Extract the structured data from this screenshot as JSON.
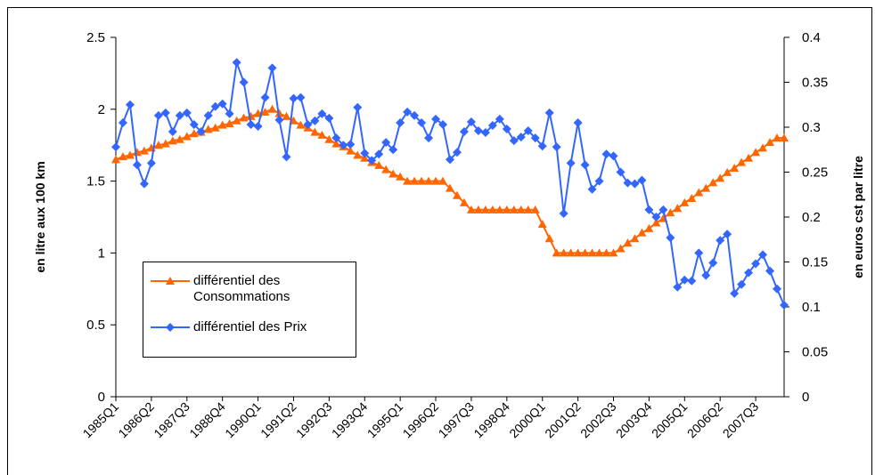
{
  "chart_data": {
    "type": "line",
    "y_label": "en litre aux 100 km",
    "y2_label": "en euros cst par litre",
    "categories": [
      "1985Q1",
      null,
      null,
      null,
      null,
      "1986Q2",
      null,
      null,
      null,
      null,
      "1987Q3",
      null,
      null,
      null,
      null,
      "1988Q4",
      null,
      null,
      null,
      null,
      "1990Q1",
      null,
      null,
      null,
      null,
      "1991Q2",
      null,
      null,
      null,
      null,
      "1992Q3",
      null,
      null,
      null,
      null,
      "1993Q4",
      null,
      null,
      null,
      null,
      "1995Q1",
      null,
      null,
      null,
      null,
      "1996Q2",
      null,
      null,
      null,
      null,
      "1997Q3",
      null,
      null,
      null,
      null,
      "1998Q4",
      null,
      null,
      null,
      null,
      "2000Q1",
      null,
      null,
      null,
      null,
      "2001Q2",
      null,
      null,
      null,
      null,
      "2002Q3",
      null,
      null,
      null,
      null,
      "2003Q4",
      null,
      null,
      null,
      null,
      "2005Q1",
      null,
      null,
      null,
      null,
      "2006Q2",
      null,
      null,
      null,
      null,
      "2007Q3",
      null,
      null,
      null,
      null
    ],
    "ylim": [
      0,
      2.5
    ],
    "yticks": [
      0,
      0.5,
      1,
      1.5,
      2,
      2.5
    ],
    "y2lim": [
      0,
      0.4
    ],
    "y2ticks": [
      0,
      0.05,
      0.1,
      0.15,
      0.2,
      0.25,
      0.3,
      0.35,
      0.4
    ],
    "series": [
      {
        "name": "différentiel des Consommations",
        "color": "#ff6600",
        "marker": "triangle",
        "values": [
          1.65,
          1.67,
          1.68,
          1.7,
          1.71,
          1.73,
          1.75,
          1.76,
          1.78,
          1.79,
          1.81,
          1.83,
          1.84,
          1.86,
          1.87,
          1.89,
          1.9,
          1.92,
          1.94,
          1.95,
          1.97,
          1.98,
          2.0,
          1.97,
          1.95,
          1.92,
          1.89,
          1.87,
          1.84,
          1.82,
          1.79,
          1.76,
          1.74,
          1.71,
          1.68,
          1.66,
          1.63,
          1.61,
          1.58,
          1.55,
          1.53,
          1.5,
          1.5,
          1.5,
          1.5,
          1.5,
          1.5,
          1.45,
          1.4,
          1.35,
          1.3,
          1.3,
          1.3,
          1.3,
          1.3,
          1.3,
          1.3,
          1.3,
          1.3,
          1.3,
          1.2,
          1.1,
          1.0,
          1.0,
          1.0,
          1.0,
          1.0,
          1.0,
          1.0,
          1.0,
          1.0,
          1.03,
          1.07,
          1.1,
          1.14,
          1.17,
          1.21,
          1.24,
          1.28,
          1.31,
          1.35,
          1.38,
          1.42,
          1.45,
          1.49,
          1.52,
          1.56,
          1.59,
          1.63,
          1.66,
          1.7,
          1.73,
          1.77,
          1.8,
          1.8
        ]
      },
      {
        "name": "différentiel des Prix",
        "color": "#3366ff",
        "marker": "diamond",
        "axis": "y2",
        "values": [
          0.278,
          0.305,
          0.325,
          0.258,
          0.237,
          0.26,
          0.313,
          0.316,
          0.295,
          0.313,
          0.316,
          0.303,
          0.295,
          0.313,
          0.323,
          0.326,
          0.315,
          0.372,
          0.35,
          0.303,
          0.301,
          0.333,
          0.366,
          0.308,
          0.267,
          0.332,
          0.333,
          0.303,
          0.307,
          0.315,
          0.31,
          0.288,
          0.28,
          0.281,
          0.322,
          0.271,
          0.263,
          0.27,
          0.283,
          0.275,
          0.305,
          0.317,
          0.313,
          0.305,
          0.288,
          0.309,
          0.303,
          0.264,
          0.272,
          0.295,
          0.306,
          0.296,
          0.294,
          0.302,
          0.309,
          0.298,
          0.285,
          0.289,
          0.296,
          0.288,
          0.279,
          0.316,
          0.278,
          0.204,
          0.26,
          0.305,
          0.258,
          0.231,
          0.24,
          0.27,
          0.268,
          0.25,
          0.238,
          0.237,
          0.241,
          0.208,
          0.2,
          0.208,
          0.177,
          0.122,
          0.13,
          0.129,
          0.16,
          0.135,
          0.149,
          0.174,
          0.181,
          0.115,
          0.125,
          0.138,
          0.148,
          0.158,
          0.14,
          0.12,
          0.102
        ]
      }
    ]
  }
}
